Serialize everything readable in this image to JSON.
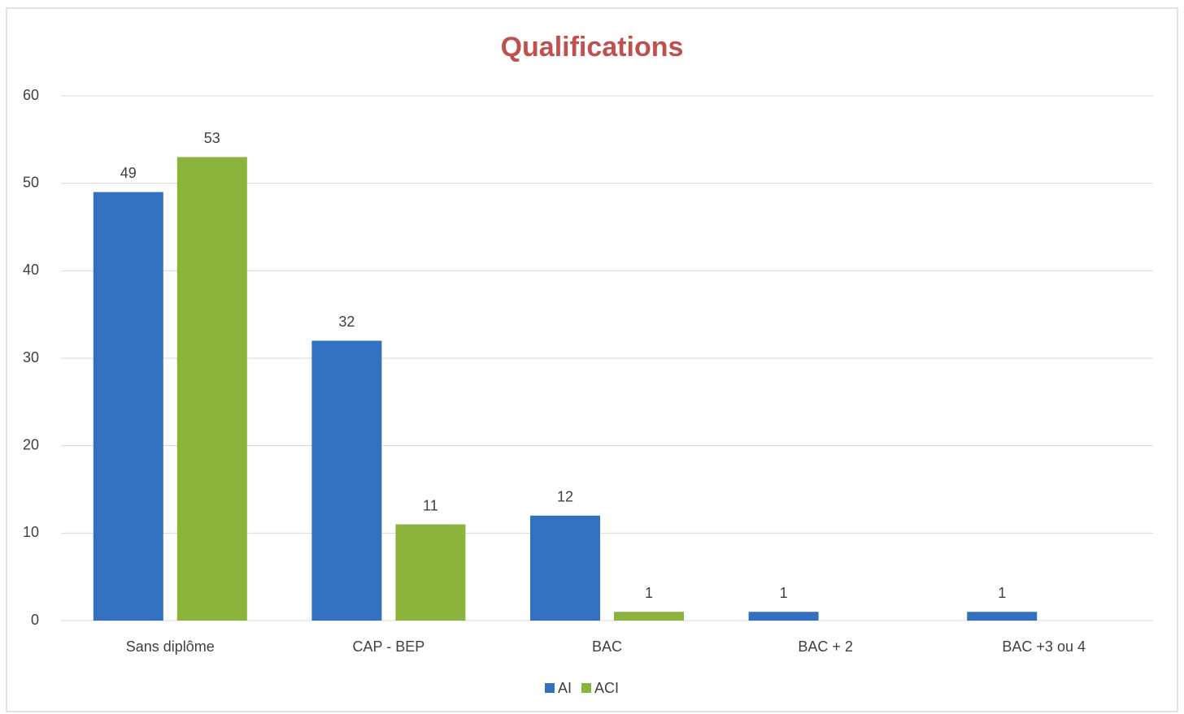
{
  "chart_data": {
    "type": "bar",
    "title": "Qualifications",
    "categories": [
      "Sans diplôme",
      "CAP - BEP",
      "BAC",
      "BAC + 2",
      "BAC +3 ou 4"
    ],
    "series": [
      {
        "name": "AI",
        "color": "#3370c0",
        "values": [
          49,
          32,
          12,
          1,
          1
        ]
      },
      {
        "name": "ACI",
        "color": "#8cb43c",
        "values": [
          53,
          11,
          1,
          null,
          null
        ]
      }
    ],
    "ylim": [
      0,
      60
    ],
    "yticks": [
      0,
      10,
      20,
      30,
      40,
      50,
      60
    ],
    "grid": true,
    "legend": "bottom"
  }
}
